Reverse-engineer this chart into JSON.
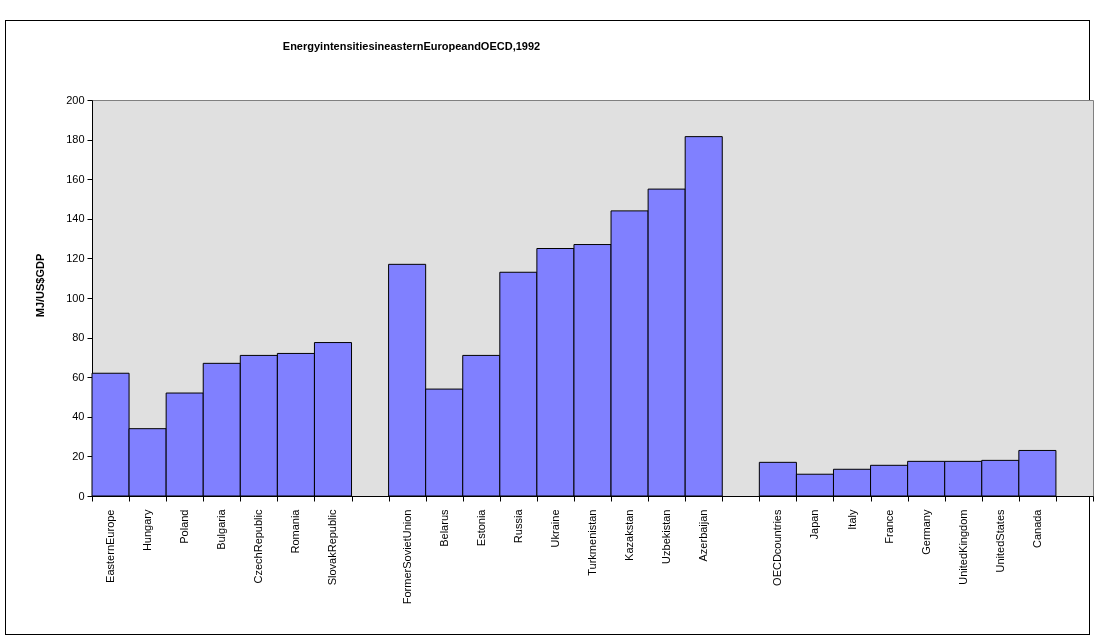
{
  "chart_data": {
    "type": "bar",
    "title": "EnergyintensitiesineasternEuropeandOECD,1992",
    "ylabel": "MJ/US$GDP",
    "categories": [
      "EasternEurope",
      "Hungary",
      "Poland",
      "Bulgaria",
      "CzechRepublic",
      "Romania",
      "SlovakRepublic",
      null,
      "FormerSovietUnion",
      "Belarus",
      "Estonia",
      "Russia",
      "Ukraine",
      "Turkmenistan",
      "Kazakstan",
      "Uzbekistan",
      "Azerbaijan",
      null,
      "OECDcountries",
      "Japan",
      "Italy",
      "France",
      "Germany",
      "UnitedKingdom",
      "UnitedStates",
      "Canada",
      null
    ],
    "values": [
      62,
      34,
      52,
      67,
      71,
      72,
      77.5,
      null,
      117,
      54,
      71,
      113,
      125,
      127,
      144,
      155,
      181.5,
      null,
      17,
      11,
      13.5,
      15.5,
      17.5,
      17.5,
      18,
      23,
      null
    ],
    "color": "#8080ff",
    "ylim": [
      0,
      200
    ],
    "yticks": [
      0,
      20,
      40,
      60,
      80,
      100,
      120,
      140,
      160,
      180,
      200
    ]
  }
}
